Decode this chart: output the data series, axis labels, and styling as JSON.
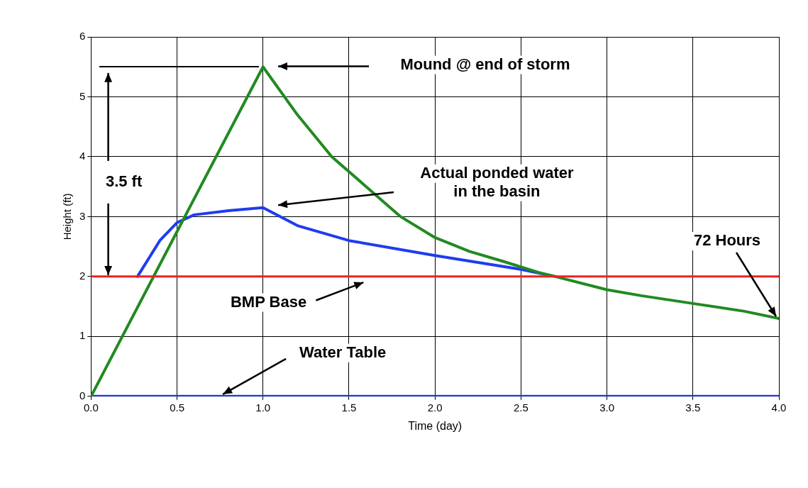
{
  "chart_data": {
    "type": "line",
    "xlabel": "Time (day)",
    "ylabel": "Height (ft)",
    "xlim": [
      0,
      4
    ],
    "xticks": [
      {
        "value": 0,
        "label": "0.0"
      },
      {
        "value": 0.5,
        "label": "0.5"
      },
      {
        "value": 1,
        "label": "1.0"
      },
      {
        "value": 1.5,
        "label": "1.5"
      },
      {
        "value": 2,
        "label": "2.0"
      },
      {
        "value": 2.5,
        "label": "2.5"
      },
      {
        "value": 3,
        "label": "3.0"
      },
      {
        "value": 3.5,
        "label": "3.5"
      },
      {
        "value": 4,
        "label": "4.0"
      }
    ],
    "ylim": [
      0,
      6
    ],
    "yticks": [
      0,
      1,
      2,
      3,
      4,
      5,
      6
    ],
    "grid": true,
    "legend": false,
    "marker": "none",
    "series": [
      {
        "color": "#218a21",
        "x": [
          0,
          1,
          1.2,
          1.4,
          1.6,
          1.8,
          2,
          2.2,
          2.4,
          2.6,
          2.7,
          3,
          3.2,
          3.5,
          3.8,
          4
        ],
        "values": [
          0,
          5.5,
          4.7,
          4.0,
          3.5,
          3.0,
          2.65,
          2.42,
          2.25,
          2.07,
          2.0,
          1.78,
          1.68,
          1.55,
          1.42,
          1.3
        ]
      },
      {
        "color": "#1f3cf0",
        "x": [
          0.27,
          0.4,
          0.5,
          0.6,
          0.8,
          1,
          1.2,
          1.5,
          2,
          2.5,
          2.7
        ],
        "values": [
          2.0,
          2.6,
          2.9,
          3.03,
          3.1,
          3.15,
          2.85,
          2.6,
          2.35,
          2.12,
          2.0
        ]
      },
      {
        "color": "#1f3cf0",
        "x": [
          0,
          4
        ],
        "values": [
          0,
          0
        ]
      }
    ],
    "ref_lines": [
      {
        "axis": "y",
        "value": 2,
        "color": "#f02020"
      }
    ],
    "annotations": [
      "Mound @ end of storm",
      "Actual ponded water\nin the basin",
      {
        "text": "72 Hours",
        "x": 4,
        "y": 1.3
      },
      "BMP Base",
      {
        "text": "Water Table",
        "x": 0.75,
        "y": 0
      },
      {
        "text": "3.5 ft",
        "x": 0.1,
        "y": 2
      }
    ]
  }
}
